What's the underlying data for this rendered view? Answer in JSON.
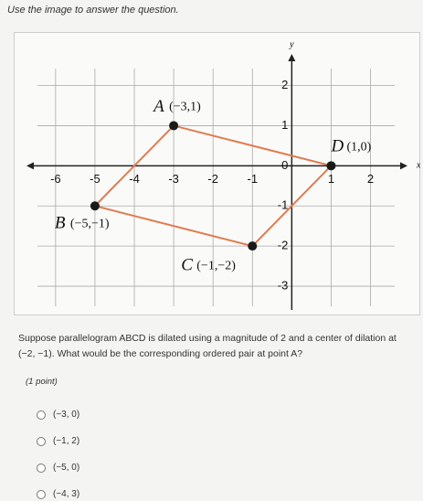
{
  "prompt": "Use the image to answer the question.",
  "figure": {
    "xlabel": "x",
    "ylabel": "y",
    "xlim": [
      -6.6,
      2.8
    ],
    "ylim": [
      -3.5,
      2.65
    ],
    "xticks": [
      -6,
      -5,
      -4,
      -3,
      -2,
      -1,
      0,
      1,
      2
    ],
    "yticks": [
      -3,
      -2,
      -1,
      0,
      1,
      2
    ],
    "grid": true,
    "edge_color": "#e07a4f",
    "point_color": "#1a1a1a",
    "points": [
      {
        "name": "A",
        "coords": "(−3,1)",
        "x": -3,
        "y": 1
      },
      {
        "name": "B",
        "coords": "(−5,−1)",
        "x": -5,
        "y": -1
      },
      {
        "name": "C",
        "coords": "(−1,−2)",
        "x": -1,
        "y": -2
      },
      {
        "name": "D",
        "coords": "(1,0)",
        "x": 1,
        "y": 0
      }
    ]
  },
  "question": "Suppose parallelogram ABCD is dilated using a magnitude of 2 and a center of dilation at (−2, −1). What would be the corresponding ordered pair at point A?",
  "points_note": "(1 point)",
  "options": [
    "(−3, 0)",
    "(−1, 2)",
    "(−5, 0)",
    "(−4, 3)"
  ]
}
